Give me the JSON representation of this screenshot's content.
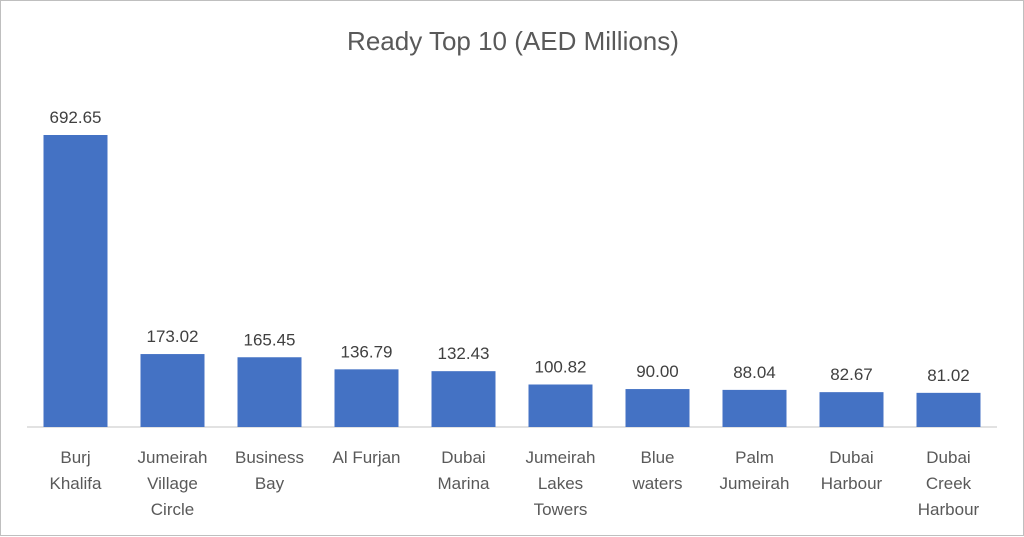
{
  "chart_data": {
    "type": "bar",
    "title": "Ready Top 10 (AED Millions)",
    "categories": [
      [
        "Burj",
        "Khalifa"
      ],
      [
        "Jumeirah",
        "Village",
        "Circle"
      ],
      [
        "Business",
        "Bay"
      ],
      [
        "Al Furjan"
      ],
      [
        "Dubai",
        "Marina"
      ],
      [
        "Jumeirah",
        "Lakes",
        "Towers"
      ],
      [
        "Blue",
        "waters"
      ],
      [
        "Palm",
        "Jumeirah"
      ],
      [
        "Dubai",
        "Harbour"
      ],
      [
        "Dubai",
        "Creek",
        "Harbour"
      ]
    ],
    "values": [
      692.65,
      173.02,
      165.45,
      136.79,
      132.43,
      100.82,
      90.0,
      88.04,
      82.67,
      81.02
    ],
    "value_labels": [
      "692.65",
      "173.02",
      "165.45",
      "136.79",
      "132.43",
      "100.82",
      "90.00",
      "88.04",
      "82.67",
      "81.02"
    ],
    "bar_color": "#4472C4",
    "axis_color": "#d9d9d9",
    "grid": false,
    "legend": "none"
  }
}
